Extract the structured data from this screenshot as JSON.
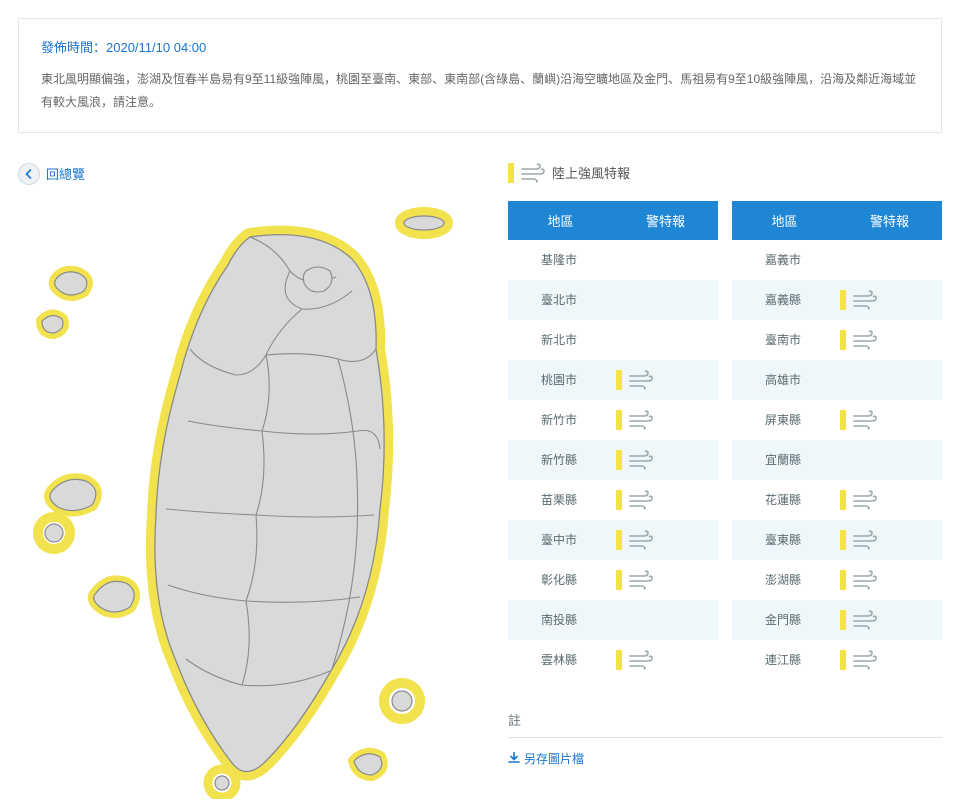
{
  "notice": {
    "title": "發佈時間：2020/11/10 04:00",
    "body": "東北風明顯偏強，澎湖及恆春半島易有9至11級強陣風，桃園至臺南、東部、東南部(含綠島、蘭嶼)沿海空曠地區及金門、馬祖易有9至10級強陣風，沿海及鄰近海域並有較大風浪，請注意。"
  },
  "back_label": "回總覽",
  "legend_text": "陸上強風特報",
  "table": {
    "header_region": "地區",
    "header_warn": "警特報",
    "left": [
      {
        "name": "基隆市",
        "warn": false
      },
      {
        "name": "臺北市",
        "warn": false
      },
      {
        "name": "新北市",
        "warn": false
      },
      {
        "name": "桃園市",
        "warn": true
      },
      {
        "name": "新竹市",
        "warn": true
      },
      {
        "name": "新竹縣",
        "warn": true
      },
      {
        "name": "苗栗縣",
        "warn": true
      },
      {
        "name": "臺中市",
        "warn": true
      },
      {
        "name": "彰化縣",
        "warn": true
      },
      {
        "name": "南投縣",
        "warn": false
      },
      {
        "name": "雲林縣",
        "warn": true
      }
    ],
    "right": [
      {
        "name": "嘉義市",
        "warn": false
      },
      {
        "name": "嘉義縣",
        "warn": true
      },
      {
        "name": "臺南市",
        "warn": true
      },
      {
        "name": "高雄市",
        "warn": false
      },
      {
        "name": "屏東縣",
        "warn": true
      },
      {
        "name": "宜蘭縣",
        "warn": false
      },
      {
        "name": "花蓮縣",
        "warn": true
      },
      {
        "name": "臺東縣",
        "warn": true
      },
      {
        "name": "澎湖縣",
        "warn": true
      },
      {
        "name": "金門縣",
        "warn": true
      },
      {
        "name": "連江縣",
        "warn": true
      }
    ]
  },
  "note_title": "註",
  "save_label": "另存圖片檔",
  "colors": {
    "accent": "#1976d2",
    "header_blue": "#1f86d6",
    "warn_yellow": "#f4e24a",
    "row_alt": "#eef8fa",
    "map_fill": "#d9d9d9",
    "map_stroke": "#8a8a8a",
    "map_halo": "#f2e34e"
  }
}
